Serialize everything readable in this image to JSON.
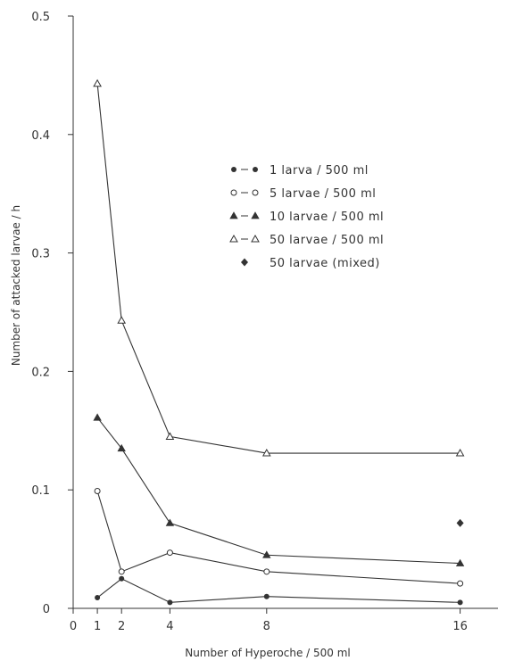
{
  "chart_data": {
    "type": "line",
    "xlabel": "Number of Hyperoche / 500 ml",
    "ylabel": "Number of attacked larvae / h",
    "xlim": [
      0,
      18
    ],
    "ylim": [
      0,
      0.5
    ],
    "x_ticks": [
      0,
      1,
      2,
      4,
      8,
      16
    ],
    "y_ticks": [
      0,
      0.1,
      0.2,
      0.3,
      0.4,
      0.5
    ],
    "y_tick_labels": [
      "0",
      "0.1",
      "0.2",
      "0.3",
      "0.4",
      "0.5"
    ],
    "legend_position": "right",
    "series": [
      {
        "name": "1 larva  / 500 ml",
        "marker": "filled-circle",
        "line": true,
        "x": [
          1,
          2,
          4,
          8,
          16
        ],
        "y": [
          0.009,
          0.025,
          0.005,
          0.01,
          0.005
        ]
      },
      {
        "name": "5 larvae / 500 ml",
        "marker": "open-circle",
        "line": true,
        "x": [
          1,
          2,
          4,
          8,
          16
        ],
        "y": [
          0.099,
          0.031,
          0.047,
          0.031,
          0.021
        ]
      },
      {
        "name": "10 larvae / 500 ml",
        "marker": "filled-triangle",
        "line": true,
        "x": [
          1,
          2,
          4,
          8,
          16
        ],
        "y": [
          0.161,
          0.135,
          0.072,
          0.045,
          0.038
        ]
      },
      {
        "name": "50 larvae / 500 ml",
        "marker": "open-triangle",
        "line": true,
        "x": [
          1,
          2,
          4,
          8,
          16
        ],
        "y": [
          0.443,
          0.243,
          0.145,
          0.131,
          0.131
        ]
      },
      {
        "name": "50 larvae (mixed)",
        "marker": "filled-diamond",
        "line": false,
        "x": [
          16
        ],
        "y": [
          0.072
        ]
      }
    ]
  }
}
